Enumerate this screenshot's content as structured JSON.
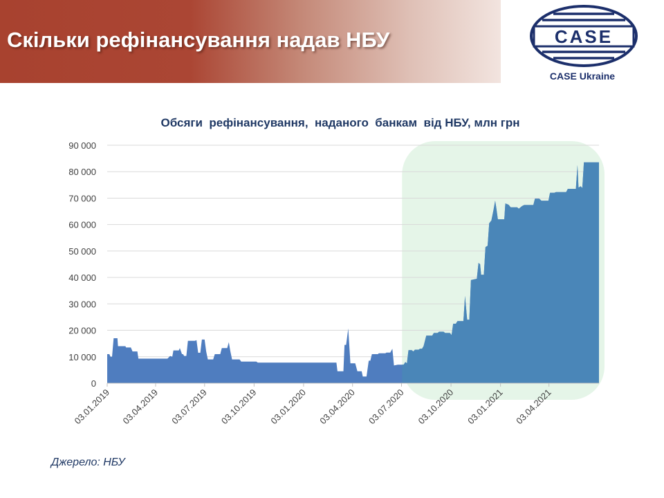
{
  "header": {
    "title": "Скільки рефінансування  надав НБУ"
  },
  "logo": {
    "mark_text": "CASE",
    "caption": "CASE Ukraine"
  },
  "source": "Джерело: НБУ",
  "colors": {
    "series_fill": "#4f7dbf",
    "series_fill_highlight": "#4a86b8",
    "highlight_region": "#e5f5e8",
    "title_text": "#1f3864",
    "logo_navy": "#1c2f6b"
  },
  "chart_data": {
    "type": "area",
    "title": "Обсяги  рефінансування,  наданого  банкам  від НБУ, млн грн",
    "xlabel": "",
    "ylabel": "",
    "ylim": [
      0,
      90000
    ],
    "yticks": [
      0,
      10000,
      20000,
      30000,
      40000,
      50000,
      60000,
      70000,
      80000,
      90000
    ],
    "ytick_labels": [
      "0",
      "10 000",
      "20 000",
      "30 000",
      "40 000",
      "50 000",
      "60 000",
      "70 000",
      "80 000",
      "90 000"
    ],
    "xlim": [
      "2019-01-03",
      "2021-07-05"
    ],
    "xticks": [
      "2019-01-03",
      "2019-04-03",
      "2019-07-03",
      "2019-10-03",
      "2020-01-03",
      "2020-04-03",
      "2020-07-03",
      "2020-10-03",
      "2021-01-03",
      "2021-04-03"
    ],
    "xtick_labels": [
      "03.01.2019",
      "03.04.2019",
      "03.07.2019",
      "03.10.2019",
      "03.01.2020",
      "03.04.2020",
      "03.07.2020",
      "03.10.2020",
      "03.01.2021",
      "03.04.2021"
    ],
    "grid": {
      "y": true,
      "x": false
    },
    "legend": "none",
    "highlight_range": [
      "2020-07-04",
      "2021-07-05"
    ],
    "series": [
      {
        "points": [
          [
            "2019-01-03",
            11000
          ],
          [
            "2019-01-07",
            11000
          ],
          [
            "2019-01-09",
            10000
          ],
          [
            "2019-01-12",
            10000
          ],
          [
            "2019-01-15",
            17000
          ],
          [
            "2019-01-22",
            17000
          ],
          [
            "2019-01-23",
            14000
          ],
          [
            "2019-02-06",
            14000
          ],
          [
            "2019-02-07",
            13500
          ],
          [
            "2019-02-16",
            13500
          ],
          [
            "2019-02-19",
            12000
          ],
          [
            "2019-02-28",
            12000
          ],
          [
            "2019-03-02",
            9300
          ],
          [
            "2019-04-25",
            9300
          ],
          [
            "2019-04-30",
            10300
          ],
          [
            "2019-05-04",
            10000
          ],
          [
            "2019-05-06",
            12400
          ],
          [
            "2019-05-16",
            12400
          ],
          [
            "2019-05-18",
            13300
          ],
          [
            "2019-05-22",
            11000
          ],
          [
            "2019-05-24",
            11000
          ],
          [
            "2019-05-26",
            10300
          ],
          [
            "2019-05-30",
            10300
          ],
          [
            "2019-06-02",
            16000
          ],
          [
            "2019-06-15",
            16000
          ],
          [
            "2019-06-18",
            16300
          ],
          [
            "2019-06-21",
            11500
          ],
          [
            "2019-06-25",
            11500
          ],
          [
            "2019-06-28",
            16500
          ],
          [
            "2019-07-03",
            16500
          ],
          [
            "2019-07-06",
            12000
          ],
          [
            "2019-07-09",
            9000
          ],
          [
            "2019-07-19",
            9000
          ],
          [
            "2019-07-22",
            11000
          ],
          [
            "2019-08-01",
            11000
          ],
          [
            "2019-08-04",
            13300
          ],
          [
            "2019-08-14",
            13300
          ],
          [
            "2019-08-17",
            15500
          ],
          [
            "2019-08-20",
            12000
          ],
          [
            "2019-08-23",
            9000
          ],
          [
            "2019-09-06",
            9000
          ],
          [
            "2019-09-09",
            8200
          ],
          [
            "2019-10-07",
            8200
          ],
          [
            "2019-10-10",
            7800
          ],
          [
            "2020-03-04",
            7800
          ],
          [
            "2020-03-06",
            4500
          ],
          [
            "2020-03-17",
            4500
          ],
          [
            "2020-03-19",
            14500
          ],
          [
            "2020-03-22",
            14500
          ],
          [
            "2020-03-26",
            20700
          ],
          [
            "2020-03-30",
            7500
          ],
          [
            "2020-04-08",
            7500
          ],
          [
            "2020-04-12",
            4500
          ],
          [
            "2020-04-20",
            4500
          ],
          [
            "2020-04-22",
            2500
          ],
          [
            "2020-04-29",
            2500
          ],
          [
            "2020-05-03",
            8500
          ],
          [
            "2020-05-06",
            8500
          ],
          [
            "2020-05-09",
            11000
          ],
          [
            "2020-05-20",
            11000
          ],
          [
            "2020-05-22",
            11300
          ],
          [
            "2020-06-03",
            11300
          ],
          [
            "2020-06-05",
            11600
          ],
          [
            "2020-06-12",
            11600
          ],
          [
            "2020-06-16",
            13000
          ],
          [
            "2020-06-19",
            6700
          ],
          [
            "2020-06-26",
            7000
          ],
          [
            "2020-07-07",
            7000
          ],
          [
            "2020-07-10",
            8000
          ],
          [
            "2020-07-13",
            7500
          ],
          [
            "2020-07-16",
            12500
          ],
          [
            "2020-07-22",
            12500
          ],
          [
            "2020-07-25",
            12000
          ],
          [
            "2020-07-28",
            12700
          ],
          [
            "2020-08-04",
            12700
          ],
          [
            "2020-08-06",
            13000
          ],
          [
            "2020-08-10",
            13000
          ],
          [
            "2020-08-13",
            14000
          ],
          [
            "2020-08-18",
            18000
          ],
          [
            "2020-08-29",
            18000
          ],
          [
            "2020-09-01",
            19000
          ],
          [
            "2020-09-08",
            19000
          ],
          [
            "2020-09-11",
            19500
          ],
          [
            "2020-09-19",
            19500
          ],
          [
            "2020-09-22",
            19000
          ],
          [
            "2020-10-01",
            19000
          ],
          [
            "2020-10-04",
            18200
          ],
          [
            "2020-10-07",
            22500
          ],
          [
            "2020-10-12",
            22500
          ],
          [
            "2020-10-15",
            23500
          ],
          [
            "2020-10-26",
            23500
          ],
          [
            "2020-10-29",
            33000
          ],
          [
            "2020-11-02",
            24000
          ],
          [
            "2020-11-06",
            24000
          ],
          [
            "2020-11-09",
            39000
          ],
          [
            "2020-11-20",
            39500
          ],
          [
            "2020-11-23",
            45500
          ],
          [
            "2020-11-26",
            45000
          ],
          [
            "2020-11-28",
            41000
          ],
          [
            "2020-12-03",
            41000
          ],
          [
            "2020-12-06",
            51500
          ],
          [
            "2020-12-10",
            52000
          ],
          [
            "2020-12-13",
            60500
          ],
          [
            "2020-12-17",
            61500
          ],
          [
            "2020-12-21",
            65500
          ],
          [
            "2020-12-24",
            69000
          ],
          [
            "2020-12-26",
            66500
          ],
          [
            "2020-12-29",
            62000
          ],
          [
            "2021-01-10",
            62000
          ],
          [
            "2021-01-12",
            68000
          ],
          [
            "2021-01-18",
            67500
          ],
          [
            "2021-01-22",
            66500
          ],
          [
            "2021-02-03",
            66500
          ],
          [
            "2021-02-06",
            66000
          ],
          [
            "2021-02-12",
            67000
          ],
          [
            "2021-02-16",
            67400
          ],
          [
            "2021-03-05",
            67400
          ],
          [
            "2021-03-08",
            69800
          ],
          [
            "2021-03-16",
            69800
          ],
          [
            "2021-03-20",
            69000
          ],
          [
            "2021-04-02",
            69000
          ],
          [
            "2021-04-05",
            72000
          ],
          [
            "2021-04-13",
            72000
          ],
          [
            "2021-04-16",
            72300
          ],
          [
            "2021-05-05",
            72300
          ],
          [
            "2021-05-08",
            73500
          ],
          [
            "2021-05-23",
            73500
          ],
          [
            "2021-05-26",
            82500
          ],
          [
            "2021-05-28",
            74000
          ],
          [
            "2021-06-01",
            74500
          ],
          [
            "2021-06-04",
            73800
          ],
          [
            "2021-06-07",
            83500
          ],
          [
            "2021-07-05",
            83500
          ]
        ]
      }
    ]
  }
}
